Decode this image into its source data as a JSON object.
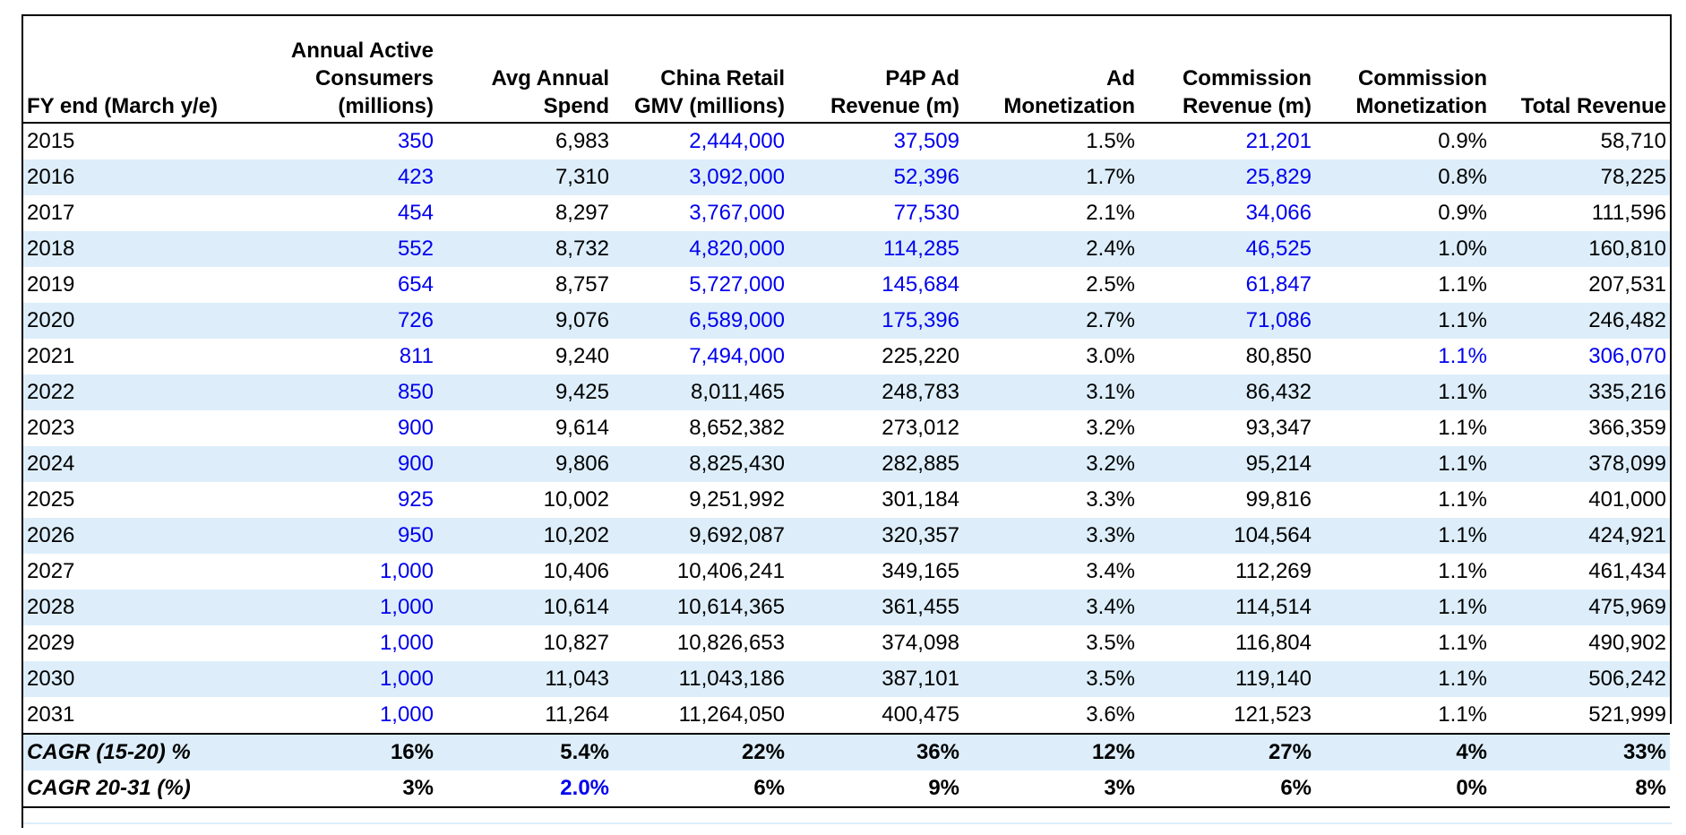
{
  "table": {
    "headers": [
      "FY end (March y/e)",
      "Annual Active\nConsumers\n(millions)",
      "Avg Annual\nSpend",
      "China Retail\nGMV (millions)",
      "P4P Ad\nRevenue (m)",
      "Ad\nMonetization",
      "Commission\nRevenue (m)",
      "Commission\nMonetization",
      "Total Revenue"
    ],
    "rows": [
      [
        "2015",
        "350",
        "6,983",
        "2,444,000",
        "37,509",
        "1.5%",
        "21,201",
        "0.9%",
        "58,710"
      ],
      [
        "2016",
        "423",
        "7,310",
        "3,092,000",
        "52,396",
        "1.7%",
        "25,829",
        "0.8%",
        "78,225"
      ],
      [
        "2017",
        "454",
        "8,297",
        "3,767,000",
        "77,530",
        "2.1%",
        "34,066",
        "0.9%",
        "111,596"
      ],
      [
        "2018",
        "552",
        "8,732",
        "4,820,000",
        "114,285",
        "2.4%",
        "46,525",
        "1.0%",
        "160,810"
      ],
      [
        "2019",
        "654",
        "8,757",
        "5,727,000",
        "145,684",
        "2.5%",
        "61,847",
        "1.1%",
        "207,531"
      ],
      [
        "2020",
        "726",
        "9,076",
        "6,589,000",
        "175,396",
        "2.7%",
        "71,086",
        "1.1%",
        "246,482"
      ],
      [
        "2021",
        "811",
        "9,240",
        "7,494,000",
        "225,220",
        "3.0%",
        "80,850",
        "1.1%",
        "306,070"
      ],
      [
        "2022",
        "850",
        "9,425",
        "8,011,465",
        "248,783",
        "3.1%",
        "86,432",
        "1.1%",
        "335,216"
      ],
      [
        "2023",
        "900",
        "9,614",
        "8,652,382",
        "273,012",
        "3.2%",
        "93,347",
        "1.1%",
        "366,359"
      ],
      [
        "2024",
        "900",
        "9,806",
        "8,825,430",
        "282,885",
        "3.2%",
        "95,214",
        "1.1%",
        "378,099"
      ],
      [
        "2025",
        "925",
        "10,002",
        "9,251,992",
        "301,184",
        "3.3%",
        "99,816",
        "1.1%",
        "401,000"
      ],
      [
        "2026",
        "950",
        "10,202",
        "9,692,087",
        "320,357",
        "3.3%",
        "104,564",
        "1.1%",
        "424,921"
      ],
      [
        "2027",
        "1,000",
        "10,406",
        "10,406,241",
        "349,165",
        "3.4%",
        "112,269",
        "1.1%",
        "461,434"
      ],
      [
        "2028",
        "1,000",
        "10,614",
        "10,614,365",
        "361,455",
        "3.4%",
        "114,514",
        "1.1%",
        "475,969"
      ],
      [
        "2029",
        "1,000",
        "10,827",
        "10,826,653",
        "374,098",
        "3.5%",
        "116,804",
        "1.1%",
        "490,902"
      ],
      [
        "2030",
        "1,000",
        "11,043",
        "11,043,186",
        "387,101",
        "3.5%",
        "119,140",
        "1.1%",
        "506,242"
      ],
      [
        "2031",
        "1,000",
        "11,264",
        "11,264,050",
        "400,475",
        "3.6%",
        "121,523",
        "1.1%",
        "521,999"
      ]
    ],
    "summary": [
      [
        "CAGR (15-20) %",
        "16%",
        "5.4%",
        "22%",
        "36%",
        "12%",
        "27%",
        "4%",
        "33%"
      ],
      [
        "CAGR 20-31 (%)",
        "3%",
        "2.0%",
        "6%",
        "9%",
        "3%",
        "6%",
        "0%",
        "8%"
      ]
    ]
  },
  "colors": {
    "input_blue": "#0000ee",
    "band": "#ddeefa"
  }
}
